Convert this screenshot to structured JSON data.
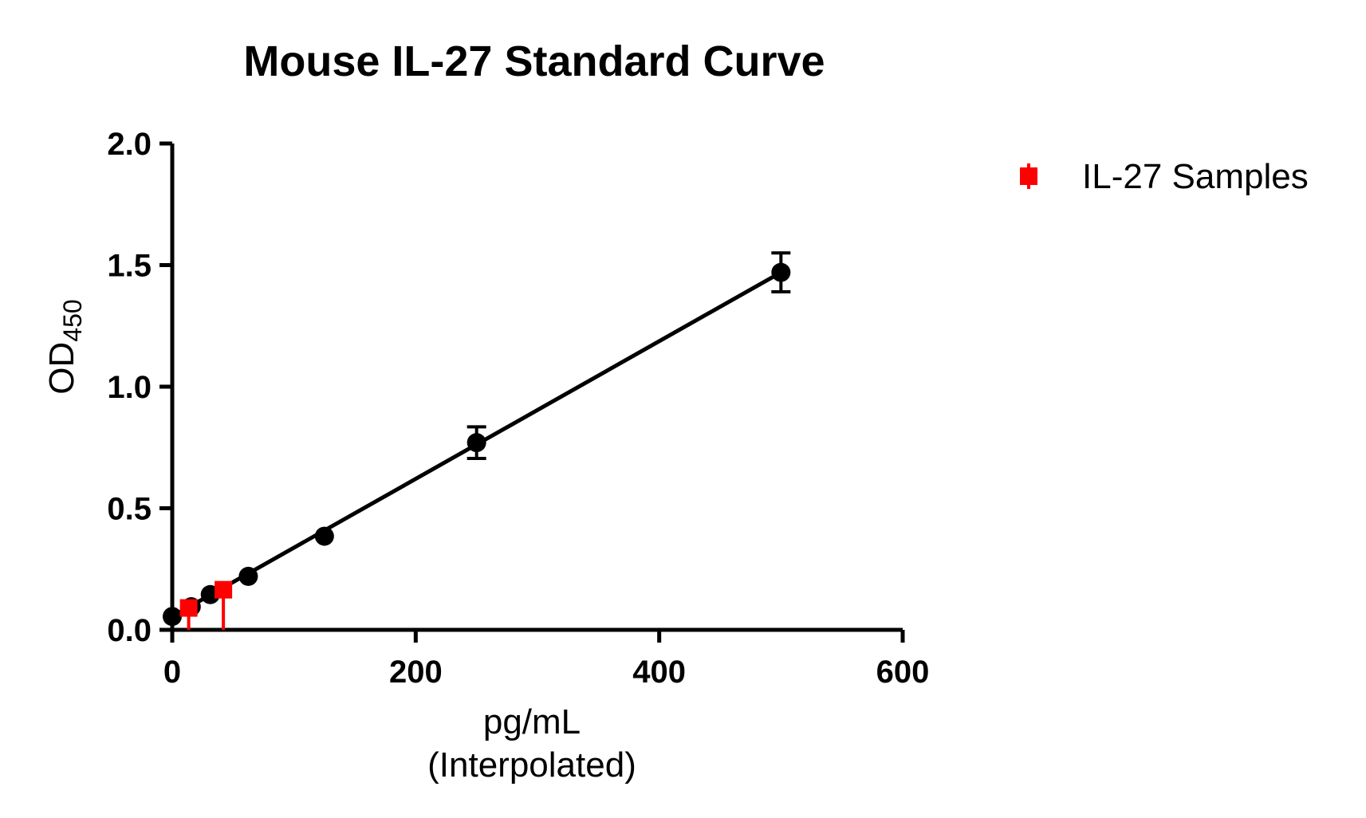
{
  "chart_data": {
    "type": "scatter",
    "title": "Mouse IL-27 Standard Curve",
    "xlabel_lines": [
      "pg/mL",
      "(Interpolated)"
    ],
    "ylabel_main": "OD",
    "ylabel_sub": "450",
    "xlim": [
      0,
      600
    ],
    "ylim": [
      0,
      2.0
    ],
    "x_ticks": [
      0,
      200,
      400,
      600
    ],
    "x_tick_labels": [
      "0",
      "200",
      "400",
      "600"
    ],
    "y_ticks": [
      0,
      0.5,
      1.0,
      1.5,
      2.0
    ],
    "y_tick_labels": [
      "0.0",
      "0.5",
      "1.0",
      "1.5",
      "2.0"
    ],
    "grid": false,
    "legend_position": "top-right",
    "series": [
      {
        "kind": "standards",
        "color": "#000000",
        "marker": "circle",
        "x": [
          0,
          15.6,
          31.25,
          62.5,
          125,
          250,
          500
        ],
        "y": [
          0.055,
          0.095,
          0.145,
          0.22,
          0.385,
          0.77,
          1.47
        ],
        "err": [
          0,
          0,
          0,
          0,
          0,
          0.065,
          0.08
        ]
      },
      {
        "name": "IL-27 Samples",
        "color": "#ff0000",
        "marker": "square",
        "x": [
          13.5,
          42
        ],
        "y": [
          0.09,
          0.165
        ],
        "drop_to_axis": true
      }
    ],
    "fit_line": {
      "color": "#000000",
      "x": [
        0,
        500
      ],
      "y": [
        0.055,
        1.47
      ]
    }
  }
}
